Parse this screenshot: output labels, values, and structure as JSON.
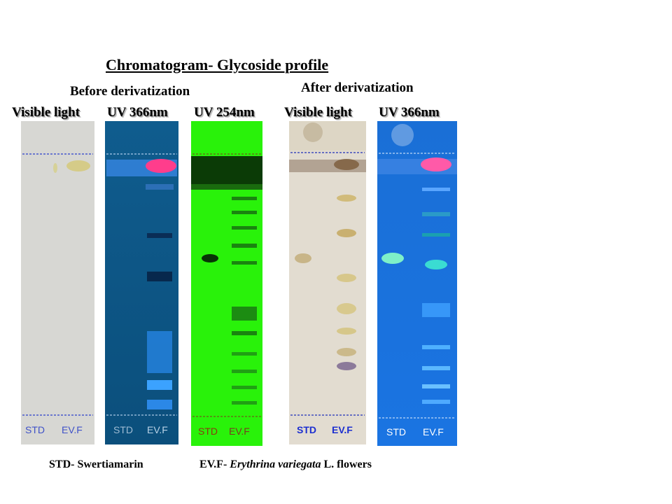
{
  "title": "Chromatogram- Glycoside profile",
  "groups": {
    "before": "Before derivatization",
    "after": "After derivatization"
  },
  "columns": [
    "Visible light",
    "UV 366nm",
    "UV 254nm",
    "Visible light",
    "UV 366nm"
  ],
  "lane_labels": {
    "std": "STD",
    "evf": "EV.F"
  },
  "footer": {
    "std_legend": "STD- Swertiamarin",
    "evf_prefix": "EV.F- ",
    "evf_species": "Erythrina variegata",
    "evf_suffix": " L. flowers"
  },
  "colors": {
    "plate_visible": "#d6d6d2",
    "plate_uv366": "#0f5a8c",
    "plate_uv254": "#29f20a",
    "plate_after_visible": "#e3ddd1",
    "plate_after_uv366": "#1a78e0",
    "front_line": "#2040c0"
  }
}
